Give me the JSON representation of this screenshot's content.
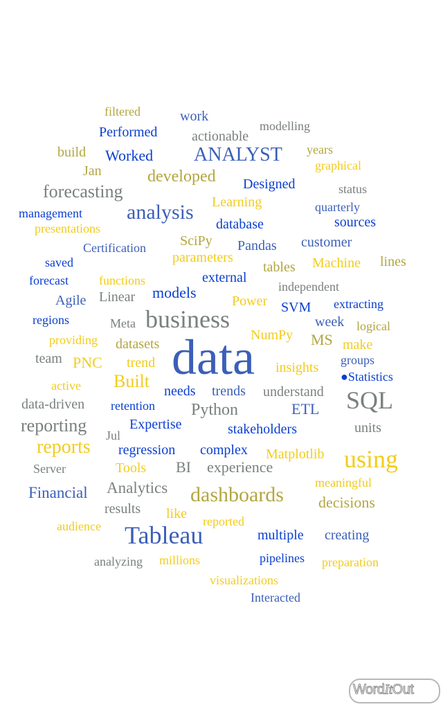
{
  "logo_text": "WordItOut",
  "words": [
    {
      "t": "data",
      "c": "c-sblue",
      "s": 72
    },
    {
      "t": "business",
      "c": "c-gray",
      "s": 36
    },
    {
      "t": "using",
      "c": "c-yellow",
      "s": 36
    },
    {
      "t": "SQL",
      "c": "c-gray",
      "s": 36
    },
    {
      "t": "Tableau",
      "c": "c-sblue",
      "s": 36
    },
    {
      "t": "analysis",
      "c": "c-sblue",
      "s": 30
    },
    {
      "t": "dashboards",
      "c": "c-olive",
      "s": 30
    },
    {
      "t": "reports",
      "c": "c-yellow",
      "s": 28
    },
    {
      "t": "ANALYST",
      "c": "c-sblue",
      "s": 28
    },
    {
      "t": "forecasting",
      "c": "c-gray",
      "s": 26
    },
    {
      "t": "reporting",
      "c": "c-gray",
      "s": 26
    },
    {
      "t": "Built",
      "c": "c-yellow",
      "s": 26
    },
    {
      "t": "Python",
      "c": "c-gray",
      "s": 24
    },
    {
      "t": "developed",
      "c": "c-olive",
      "s": 24
    },
    {
      "t": "Financial",
      "c": "c-sblue",
      "s": 23
    },
    {
      "t": "Analytics",
      "c": "c-gray",
      "s": 23
    },
    {
      "t": "experience",
      "c": "c-gray",
      "s": 22
    },
    {
      "t": "ETL",
      "c": "c-sblue",
      "s": 22
    },
    {
      "t": "decisions",
      "c": "c-olive",
      "s": 22
    },
    {
      "t": "BI",
      "c": "c-gray",
      "s": 22
    },
    {
      "t": "Worked",
      "c": "c-blue",
      "s": 22
    },
    {
      "t": "models",
      "c": "c-blue",
      "s": 22
    },
    {
      "t": "MS",
      "c": "c-olive",
      "s": 22
    },
    {
      "t": "PNC",
      "c": "c-yellow",
      "s": 22
    },
    {
      "t": "insights",
      "c": "c-yellow",
      "s": 20
    },
    {
      "t": "database",
      "c": "c-blue",
      "s": 20
    },
    {
      "t": "sources",
      "c": "c-blue",
      "s": 20
    },
    {
      "t": "Performed",
      "c": "c-blue",
      "s": 20
    },
    {
      "t": "Designed",
      "c": "c-blue",
      "s": 20
    },
    {
      "t": "actionable",
      "c": "c-gray",
      "s": 20
    },
    {
      "t": "stakeholders",
      "c": "c-blue",
      "s": 20
    },
    {
      "t": "understand",
      "c": "c-gray",
      "s": 20
    },
    {
      "t": "regression",
      "c": "c-blue",
      "s": 20
    },
    {
      "t": "complex",
      "c": "c-blue",
      "s": 20
    },
    {
      "t": "Matplotlib",
      "c": "c-yellow",
      "s": 20
    },
    {
      "t": "like",
      "c": "c-yellow",
      "s": 20
    },
    {
      "t": "results",
      "c": "c-gray",
      "s": 20
    },
    {
      "t": "customer",
      "c": "c-sblue",
      "s": 20
    },
    {
      "t": "Pandas",
      "c": "c-sblue",
      "s": 20
    },
    {
      "t": "Machine",
      "c": "c-yellow",
      "s": 20
    },
    {
      "t": "lines",
      "c": "c-olive",
      "s": 20
    },
    {
      "t": "Agile",
      "c": "c-sblue",
      "s": 20
    },
    {
      "t": "Linear",
      "c": "c-gray",
      "s": 20
    },
    {
      "t": "Power",
      "c": "c-yellow",
      "s": 20
    },
    {
      "t": "external",
      "c": "c-blue",
      "s": 20
    },
    {
      "t": "Expertise",
      "c": "c-blue",
      "s": 20
    },
    {
      "t": "needs",
      "c": "c-blue",
      "s": 20
    },
    {
      "t": "trends",
      "c": "c-sblue",
      "s": 20
    },
    {
      "t": "Tools",
      "c": "c-yellow",
      "s": 20
    },
    {
      "t": "Jan",
      "c": "c-olive",
      "s": 20
    },
    {
      "t": "build",
      "c": "c-olive",
      "s": 20
    },
    {
      "t": "multiple",
      "c": "c-blue",
      "s": 20
    },
    {
      "t": "creating",
      "c": "c-sblue",
      "s": 20
    },
    {
      "t": "Learning",
      "c": "c-yellow",
      "s": 20
    },
    {
      "t": "SciPy",
      "c": "c-olive",
      "s": 20
    },
    {
      "t": "datasets",
      "c": "c-olive",
      "s": 20
    },
    {
      "t": "trend",
      "c": "c-yellow",
      "s": 20
    },
    {
      "t": "week",
      "c": "c-sblue",
      "s": 20
    },
    {
      "t": "make",
      "c": "c-yellow",
      "s": 20
    },
    {
      "t": "team",
      "c": "c-gray",
      "s": 20
    },
    {
      "t": "units",
      "c": "c-gray",
      "s": 20
    },
    {
      "t": "tables",
      "c": "c-olive",
      "s": 20
    },
    {
      "t": "work",
      "c": "c-sblue",
      "s": 20
    },
    {
      "t": "NumPy",
      "c": "c-yellow",
      "s": 20
    },
    {
      "t": "SVM",
      "c": "c-blue",
      "s": 20
    },
    {
      "t": "data-driven",
      "c": "c-gray",
      "s": 20
    },
    {
      "t": "parameters",
      "c": "c-yellow",
      "s": 20
    },
    {
      "t": "modelling",
      "c": "c-gray",
      "s": 18
    },
    {
      "t": "filtered",
      "c": "c-olive",
      "s": 18
    },
    {
      "t": "years",
      "c": "c-olive",
      "s": 18
    },
    {
      "t": "graphical",
      "c": "c-yellow",
      "s": 18
    },
    {
      "t": "status",
      "c": "c-gray",
      "s": 18
    },
    {
      "t": "management",
      "c": "c-blue",
      "s": 18
    },
    {
      "t": "quarterly",
      "c": "c-sblue",
      "s": 18
    },
    {
      "t": "presentations",
      "c": "c-yellow",
      "s": 18
    },
    {
      "t": "Certification",
      "c": "c-sblue",
      "s": 18
    },
    {
      "t": "saved",
      "c": "c-blue",
      "s": 18
    },
    {
      "t": "forecast",
      "c": "c-blue",
      "s": 18
    },
    {
      "t": "functions",
      "c": "c-yellow",
      "s": 18
    },
    {
      "t": "independent",
      "c": "c-gray",
      "s": 18
    },
    {
      "t": "extracting",
      "c": "c-blue",
      "s": 18
    },
    {
      "t": "regions",
      "c": "c-blue",
      "s": 18
    },
    {
      "t": "Meta",
      "c": "c-gray",
      "s": 18
    },
    {
      "t": "logical",
      "c": "c-olive",
      "s": 18
    },
    {
      "t": "providing",
      "c": "c-yellow",
      "s": 18
    },
    {
      "t": "groups",
      "c": "c-sblue",
      "s": 18
    },
    {
      "t": "●Statistics",
      "c": "c-blue",
      "s": 18
    },
    {
      "t": "active",
      "c": "c-yellow",
      "s": 18
    },
    {
      "t": "retention",
      "c": "c-blue",
      "s": 18
    },
    {
      "t": "Jul",
      "c": "c-gray",
      "s": 18
    },
    {
      "t": "Server",
      "c": "c-gray",
      "s": 18
    },
    {
      "t": "meaningful",
      "c": "c-yellow",
      "s": 18
    },
    {
      "t": "reported",
      "c": "c-yellow",
      "s": 18
    },
    {
      "t": "audience",
      "c": "c-yellow",
      "s": 18
    },
    {
      "t": "analyzing",
      "c": "c-gray",
      "s": 18
    },
    {
      "t": "millions",
      "c": "c-yellow",
      "s": 18
    },
    {
      "t": "pipelines",
      "c": "c-blue",
      "s": 18
    },
    {
      "t": "preparation",
      "c": "c-yellow",
      "s": 18
    },
    {
      "t": "visualizations",
      "c": "c-yellow",
      "s": 18
    },
    {
      "t": "Interacted",
      "c": "c-sblue",
      "s": 18
    }
  ]
}
